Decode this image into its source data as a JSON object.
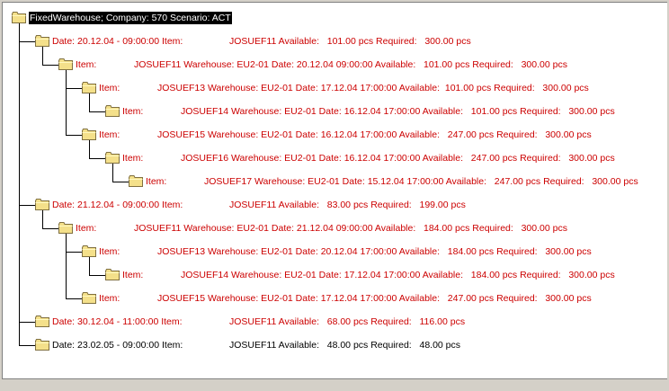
{
  "tree": {
    "nodes": [
      {
        "level": 0,
        "selected": true,
        "color": "#ffffff",
        "label": "FixedWarehouse; Company: 570 Scenario: ACT"
      },
      {
        "level": 1,
        "color": "#cc0000",
        "label": "Date: 20.12.04 - 09:00:00 Item:",
        "detail": "JOSUEF11 Available:   101.00 pcs Required:   300.00 pcs"
      },
      {
        "level": 2,
        "color": "#cc0000",
        "label": "Item:",
        "detail": "JOSUEF11 Warehouse: EU2-01 Date: 20.12.04 09:00:00 Available:   101.00 pcs Required:   300.00 pcs"
      },
      {
        "level": 3,
        "color": "#cc0000",
        "label": "Item:",
        "detail": "JOSUEF13 Warehouse: EU2-01 Date: 17.12.04 17:00:00 Available:  101.00 pcs Required:   300.00 pcs"
      },
      {
        "level": 4,
        "color": "#cc0000",
        "label": "Item:",
        "detail": "JOSUEF14 Warehouse: EU2-01 Date: 16.12.04 17:00:00 Available:   101.00 pcs Required:   300.00 pcs"
      },
      {
        "level": 3,
        "color": "#cc0000",
        "label": "Item:",
        "detail": "JOSUEF15 Warehouse: EU2-01 Date: 16.12.04 17:00:00 Available:   247.00 pcs Required:   300.00 pcs"
      },
      {
        "level": 4,
        "color": "#cc0000",
        "label": "Item:",
        "detail": "JOSUEF16 Warehouse: EU2-01 Date: 16.12.04 17:00:00 Available:   247.00 pcs Required:   300.00 pcs"
      },
      {
        "level": 5,
        "color": "#cc0000",
        "label": "Item:",
        "detail": "JOSUEF17 Warehouse: EU2-01 Date: 15.12.04 17:00:00 Available:   247.00 pcs Required:   300.00 pcs"
      },
      {
        "level": 1,
        "color": "#cc0000",
        "label": "Date: 21.12.04 - 09:00:00 Item:",
        "detail": "JOSUEF11 Available:   83.00 pcs Required:   199.00 pcs"
      },
      {
        "level": 2,
        "color": "#cc0000",
        "label": "Item:",
        "detail": "JOSUEF11 Warehouse: EU2-01 Date: 21.12.04 09:00:00 Available:   184.00 pcs Required:   300.00 pcs"
      },
      {
        "level": 3,
        "color": "#cc0000",
        "label": "Item:",
        "detail": "JOSUEF13 Warehouse: EU2-01 Date: 20.12.04 17:00:00 Available:   184.00 pcs Required:   300.00 pcs"
      },
      {
        "level": 4,
        "color": "#cc0000",
        "label": "Item:",
        "detail": "JOSUEF14 Warehouse: EU2-01 Date: 17.12.04 17:00:00 Available:   184.00 pcs Required:   300.00 pcs"
      },
      {
        "level": 3,
        "color": "#cc0000",
        "label": "Item:",
        "detail": "JOSUEF15 Warehouse: EU2-01 Date: 17.12.04 17:00:00 Available:   247.00 pcs Required:   300.00 pcs"
      },
      {
        "level": 1,
        "color": "#cc0000",
        "label": "Date: 30.12.04 - 11:00:00 Item:",
        "detail": "JOSUEF11 Available:   68.00 pcs Required:   116.00 pcs"
      },
      {
        "level": 1,
        "color": "#000000",
        "label": "Date: 23.02.05 - 09:00:00 Item:",
        "detail": "JOSUEF11 Available:   48.00 pcs Required:   48.00 pcs"
      }
    ]
  }
}
